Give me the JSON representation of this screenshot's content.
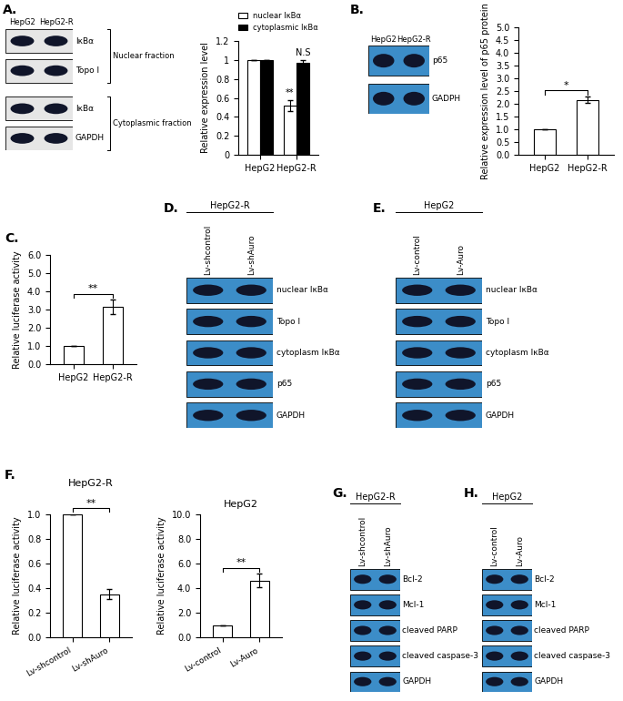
{
  "panel_labels": [
    "A.",
    "B.",
    "C.",
    "D.",
    "E.",
    "F.",
    "G.",
    "H."
  ],
  "chart_data": [
    {
      "type": "bar",
      "categories": [
        "HepG2",
        "HepG2-R"
      ],
      "y_label": "Relative expression level",
      "series": [
        {
          "name": "nuclear IκBα",
          "color": "#ffffff",
          "values": [
            1,
            0.52
          ],
          "errors": [
            0,
            0.06
          ],
          "significance": [
            null,
            "**"
          ]
        },
        {
          "name": "cytoplasmic IκBα",
          "color": "#000000",
          "values": [
            1,
            0.97
          ],
          "errors": [
            0,
            0.03
          ],
          "significance": [
            null,
            "N.S"
          ]
        }
      ],
      "ylim": [
        0,
        1.2
      ],
      "yticks": [
        0,
        0.2,
        0.4,
        0.6,
        0.8,
        1,
        1.2
      ],
      "legend": "top",
      "grid": false
    },
    {
      "type": "bar",
      "categories": [
        "HepG2",
        "HepG2-R"
      ],
      "y_label": "Relative expression level of p65 protein",
      "values": [
        1,
        2.15
      ],
      "errors": [
        0,
        0.12
      ],
      "color": "#ffffff",
      "significance": "*",
      "ylim": [
        0,
        5.0
      ],
      "yticks": [
        {
          "value": 0,
          "label": "0.0"
        },
        {
          "value": 0.5,
          "label": "0.5"
        },
        {
          "value": 1,
          "label": "1.0"
        },
        {
          "value": 1.5,
          "label": "1.5"
        },
        {
          "value": 2,
          "label": "2.0"
        },
        {
          "value": 2.5,
          "label": "2.5"
        },
        {
          "value": 3,
          "label": "3.0"
        },
        {
          "value": 3.5,
          "label": "3.5"
        },
        {
          "value": 4,
          "label": "4.0"
        },
        {
          "value": 4.5,
          "label": "4.5"
        },
        {
          "value": 5,
          "label": "5.0"
        }
      ],
      "grid": false
    },
    {
      "type": "bar",
      "categories": [
        "HepG2",
        "HepG2-R"
      ],
      "y_label": "Relative luciferase activity",
      "values": [
        1,
        3.15
      ],
      "errors": [
        0,
        0.4
      ],
      "color": "#ffffff",
      "significance": "**",
      "ylim": [
        0,
        6.0
      ],
      "yticks": [
        {
          "value": 0,
          "label": "0.0"
        },
        {
          "value": 1,
          "label": "1.0"
        },
        {
          "value": 2,
          "label": "2.0"
        },
        {
          "value": 3,
          "label": "3.0"
        },
        {
          "value": 4,
          "label": "4.0"
        },
        {
          "value": 5,
          "label": "5.0"
        },
        {
          "value": 6,
          "label": "6.0"
        }
      ],
      "grid": false
    },
    {
      "type": "bar",
      "title": "HepG2-R",
      "categories": [
        "Lv-shcontrol",
        "Lv-shAuro"
      ],
      "y_label": "Relative luciferase activity",
      "values": [
        1,
        0.35
      ],
      "errors": [
        0,
        0.04
      ],
      "color": "#ffffff",
      "significance": "**",
      "ylim": [
        0,
        1.0
      ],
      "yticks": [
        {
          "value": 0,
          "label": "0.0"
        },
        {
          "value": 0.2,
          "label": "0.2"
        },
        {
          "value": 0.4,
          "label": "0.4"
        },
        {
          "value": 0.6,
          "label": "0.6"
        },
        {
          "value": 0.8,
          "label": "0.8"
        },
        {
          "value": 1,
          "label": "1.0"
        }
      ],
      "grid": false
    },
    {
      "type": "bar",
      "title": "HepG2",
      "categories": [
        "Lv-control",
        "Lv-Auro"
      ],
      "y_label": "Relative luciferase activity",
      "values": [
        1,
        4.6
      ],
      "errors": [
        0,
        0.55
      ],
      "color": "#ffffff",
      "significance": "**",
      "ylim": [
        0,
        10.0
      ],
      "yticks": [
        {
          "value": 0,
          "label": "0.0"
        },
        {
          "value": 2,
          "label": "2.0"
        },
        {
          "value": 4,
          "label": "4.0"
        },
        {
          "value": 6,
          "label": "6.0"
        },
        {
          "value": 8,
          "label": "8.0"
        },
        {
          "value": 10,
          "label": "10.0"
        }
      ],
      "grid": false
    }
  ],
  "blots": [
    {
      "lanes": [
        "HepG2",
        "HepG2-R"
      ],
      "color": "#e6e6e6",
      "groups": [
        {
          "name": "Nuclear fraction",
          "rows": [
            "IκBα",
            "Topo I"
          ]
        },
        {
          "name": "Cytoplasmic fraction",
          "rows": [
            "IκBα",
            "GAPDH"
          ]
        }
      ]
    },
    {
      "lanes": [
        "HepG2",
        "HepG2-R"
      ],
      "color": "#3c8dc8",
      "groups": [
        {
          "rows": [
            "p65",
            "GADPH"
          ]
        }
      ]
    },
    {
      "header": "HepG2-R",
      "lanes": [
        "Lv-shcontrol",
        "Lv-shAuro"
      ],
      "color": "#3c8dc8",
      "groups": [
        {
          "rows": [
            "nuclear IκBα",
            "Topo I",
            "cytoplasm IκBα",
            "p65",
            "GAPDH"
          ]
        }
      ]
    },
    {
      "header": "HepG2",
      "lanes": [
        "Lv-control",
        "Lv-Auro"
      ],
      "color": "#3c8dc8",
      "groups": [
        {
          "rows": [
            "nuclear IκBα",
            "Topo I",
            "cytoplasm IκBα",
            "p65",
            "GAPDH"
          ]
        }
      ]
    },
    {
      "header": "HepG2-R",
      "lanes": [
        "Lv-shcontrol",
        "Lv-shAuro"
      ],
      "color": "#3c8dc8",
      "groups": [
        {
          "rows": [
            "Bcl-2",
            "Mcl-1",
            "cleaved PARP",
            "cleaved caspase-3",
            "GAPDH"
          ]
        }
      ]
    },
    {
      "header": "HepG2",
      "lanes": [
        "Lv-control",
        "Lv-Auro"
      ],
      "color": "#3c8dc8",
      "groups": [
        {
          "rows": [
            "Bcl-2",
            "Mcl-1",
            "cleaved PARP",
            "cleaved caspase-3",
            "GAPDH"
          ]
        }
      ]
    }
  ]
}
